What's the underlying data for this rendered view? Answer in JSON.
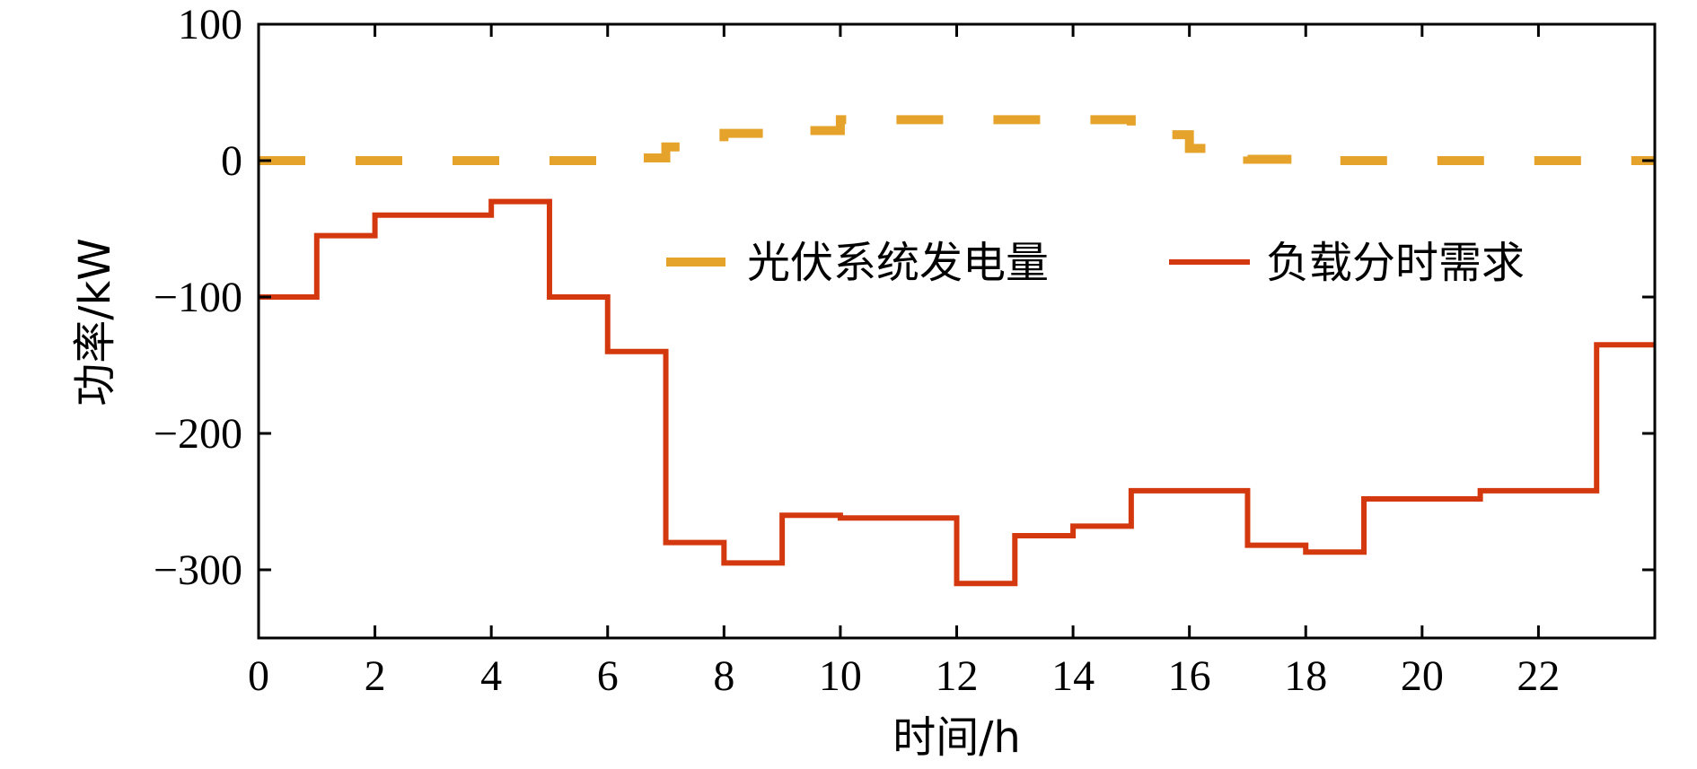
{
  "chart_data": {
    "type": "line",
    "step": true,
    "title": "",
    "xlabel": "时间/h",
    "ylabel": "功率/kW",
    "xlim": [
      0,
      24
    ],
    "ylim": [
      -350,
      100
    ],
    "xticks": [
      0,
      2,
      4,
      6,
      8,
      10,
      12,
      14,
      16,
      18,
      20,
      22
    ],
    "xtick_labels": [
      "0",
      "2",
      "4",
      "6",
      "8",
      "10",
      "12",
      "14",
      "16",
      "18",
      "20",
      "22"
    ],
    "yticks": [
      100,
      0,
      -100,
      -200,
      -300
    ],
    "ytick_labels": [
      "100",
      "0",
      "−100",
      "−200",
      "−300"
    ],
    "grid": false,
    "legend": {
      "position": "upper-right",
      "orientation": "horizontal"
    },
    "x": [
      0,
      1,
      2,
      3,
      4,
      5,
      6,
      7,
      8,
      9,
      10,
      11,
      12,
      13,
      14,
      15,
      16,
      17,
      18,
      19,
      20,
      21,
      22,
      23,
      24
    ],
    "series": [
      {
        "name": "光伏系统发电量",
        "color": "#E5A32B",
        "dash": true,
        "values": [
          0,
          0,
          0,
          0,
          0,
          0,
          2,
          10,
          20,
          22,
          30,
          30,
          30,
          30,
          30,
          19,
          9,
          1,
          0,
          0,
          0,
          0,
          0,
          0,
          0
        ]
      },
      {
        "name": "负载分时需求",
        "color": "#D4380F",
        "dash": false,
        "values": [
          -100,
          -55,
          -40,
          -40,
          -30,
          -100,
          -140,
          -280,
          -295,
          -260,
          -262,
          -262,
          -310,
          -275,
          -268,
          -242,
          -242,
          -282,
          -287,
          -248,
          -248,
          -242,
          -242,
          -135,
          -135
        ]
      }
    ]
  }
}
